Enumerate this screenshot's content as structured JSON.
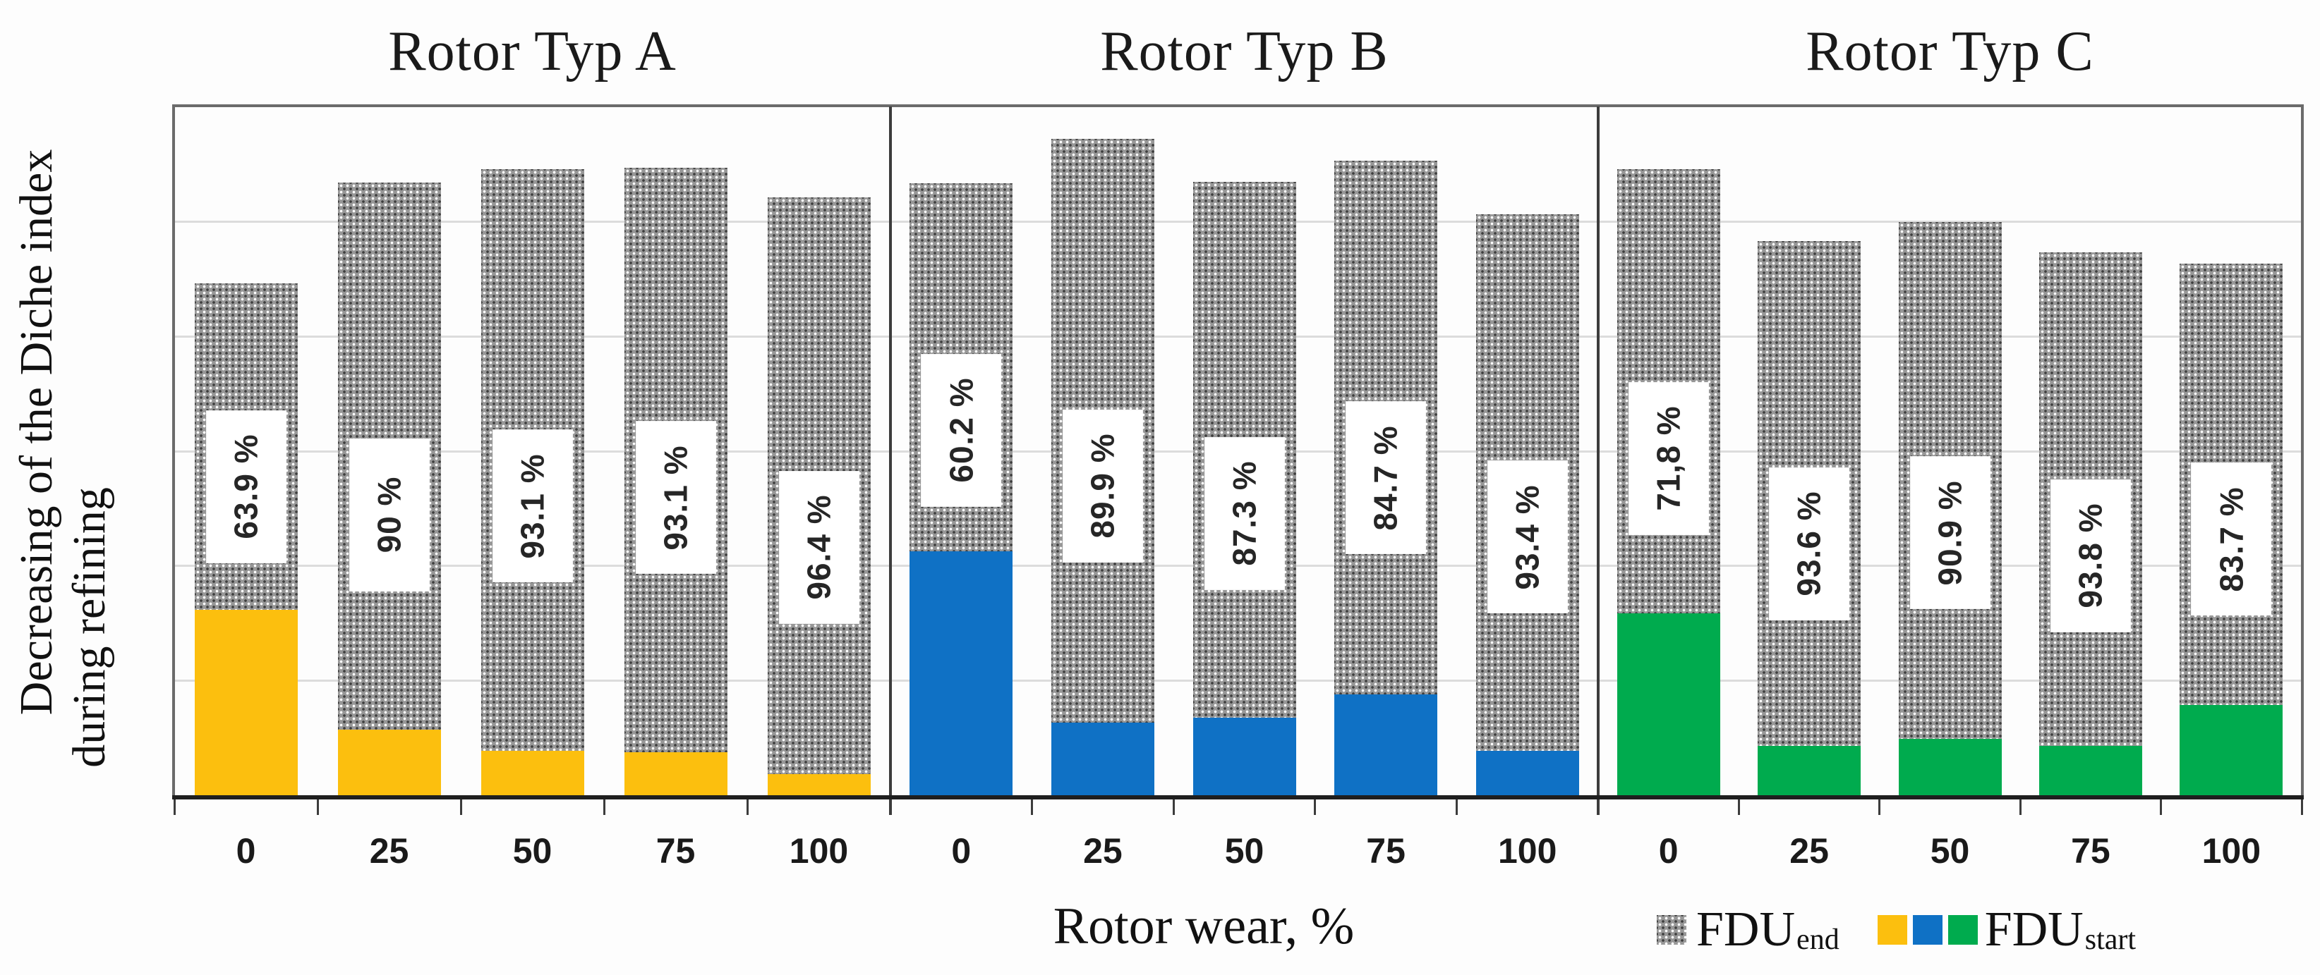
{
  "figure": {
    "y_axis_label_line1": "Decreasing of the Diche index",
    "y_axis_label_line2": "during refining",
    "x_axis_title": "Rotor wear, %"
  },
  "legend": {
    "end_name": "FDU",
    "end_subscript": "end",
    "start_name": "FDU",
    "start_subscript": "start",
    "end_swatch": "dotted-gray-pattern",
    "start_swatch_colors": [
      "#FCBF0E",
      "#0F71C5",
      "#00AB4E"
    ]
  },
  "colors": {
    "fdu_end_gray": "#979797",
    "typ_a_yellow": "#FCBF0E",
    "typ_b_blue": "#0F71C5",
    "typ_c_green": "#00AB4E",
    "gridline": "#dcdcdc",
    "axis": "#1f1f1f"
  },
  "chart_data": {
    "type": "bar",
    "stacked": true,
    "grid": "horizontal-light",
    "x_axis_title": "Rotor wear, %",
    "categories": [
      "0",
      "25",
      "50",
      "75",
      "100"
    ],
    "value_units": "percent of plot height (0 = baseline, 100 = plot top); bars show FDU_start (colored, bottom) stacked under FDU_end (dotted gray, top); box label = decrease percentage",
    "panels": [
      {
        "title": "Rotor Typ A",
        "start_color": "#FCBF0E",
        "bars": [
          {
            "category": "0",
            "label": "63.9 %",
            "total_top": 74.3,
            "start_top": 26.9,
            "label_y": 44.8
          },
          {
            "category": "25",
            "label": "90 %",
            "total_top": 88.9,
            "start_top": 9.5,
            "label_y": 40.7
          },
          {
            "category": "50",
            "label": "93.1 %",
            "total_top": 90.9,
            "start_top": 6.4,
            "label_y": 42.0
          },
          {
            "category": "75",
            "label": "93.1 %",
            "total_top": 91.1,
            "start_top": 6.2,
            "label_y": 43.2
          },
          {
            "category": "100",
            "label": "96.4 %",
            "total_top": 86.8,
            "start_top": 3.1,
            "label_y": 36.0
          }
        ]
      },
      {
        "title": "Rotor Typ B",
        "start_color": "#0F71C5",
        "bars": [
          {
            "category": "0",
            "label": "60.2 %",
            "total_top": 88.8,
            "start_top": 35.4,
            "label_y": 53.0
          },
          {
            "category": "25",
            "label": "89.9 %",
            "total_top": 95.3,
            "start_top": 10.5,
            "label_y": 44.9
          },
          {
            "category": "50",
            "label": "87.3 %",
            "total_top": 89.0,
            "start_top": 11.3,
            "label_y": 40.9
          },
          {
            "category": "75",
            "label": "84.7 %",
            "total_top": 92.1,
            "start_top": 14.6,
            "label_y": 46.1
          },
          {
            "category": "100",
            "label": "93.4 %",
            "total_top": 84.3,
            "start_top": 6.4,
            "label_y": 37.5
          }
        ]
      },
      {
        "title": "Rotor Typ C",
        "start_color": "#00AB4E",
        "bars": [
          {
            "category": "0",
            "label": "71,8 %",
            "total_top": 90.9,
            "start_top": 26.4,
            "label_y": 48.9
          },
          {
            "category": "25",
            "label": "93.6 %",
            "total_top": 80.4,
            "start_top": 7.2,
            "label_y": 36.5
          },
          {
            "category": "50",
            "label": "90.9 %",
            "total_top": 83.2,
            "start_top": 8.2,
            "label_y": 38.1
          },
          {
            "category": "75",
            "label": "93.8 %",
            "total_top": 78.8,
            "start_top": 7.2,
            "label_y": 34.8
          },
          {
            "category": "100",
            "label": "83.7 %",
            "total_top": 77.2,
            "start_top": 13.1,
            "label_y": 37.2
          }
        ]
      }
    ]
  }
}
